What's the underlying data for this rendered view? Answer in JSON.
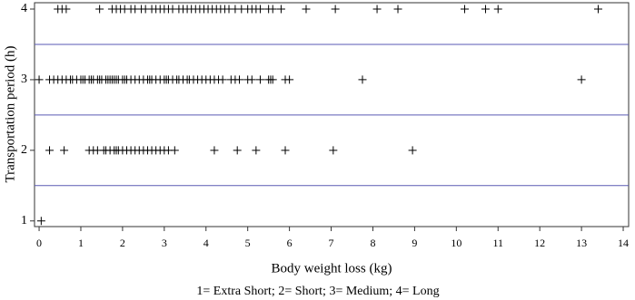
{
  "chart_data": {
    "type": "scatter",
    "xlabel": "Body weight loss (kg)",
    "ylabel": "Transportation period (h)",
    "caption": "1= Extra Short; 2= Short; 3= Medium; 4= Long",
    "xlim": [
      -0.11,
      14.13
    ],
    "ylim": [
      0.92,
      4.09
    ],
    "xticks": [
      0,
      1,
      2,
      3,
      4,
      5,
      6,
      7,
      8,
      9,
      10,
      11,
      12,
      13,
      14
    ],
    "yticks": [
      1,
      2,
      3,
      4
    ],
    "hlines": [
      1.5,
      2.5,
      3.5
    ],
    "hline_color": "#5a5ab4",
    "series": [
      {
        "color": "#000000",
        "x": [
          0.45,
          0.55,
          0.65,
          1.45,
          1.75,
          1.85,
          1.95,
          2.05,
          2.2,
          2.3,
          2.45,
          2.55,
          2.7,
          2.8,
          2.9,
          3.0,
          3.1,
          3.2,
          3.35,
          3.45,
          3.55,
          3.65,
          3.75,
          3.85,
          3.95,
          4.05,
          4.15,
          4.25,
          4.35,
          4.45,
          4.55,
          4.7,
          4.85,
          5.0,
          5.1,
          5.2,
          5.3,
          5.5,
          5.6,
          5.8,
          6.4,
          7.1,
          8.1,
          8.6,
          10.2,
          10.7,
          11.0,
          13.4
        ],
        "values": [
          4,
          4,
          4,
          4,
          4,
          4,
          4,
          4,
          4,
          4,
          4,
          4,
          4,
          4,
          4,
          4,
          4,
          4,
          4,
          4,
          4,
          4,
          4,
          4,
          4,
          4,
          4,
          4,
          4,
          4,
          4,
          4,
          4,
          4,
          4,
          4,
          4,
          4,
          4,
          4,
          4,
          4,
          4,
          4,
          4,
          4,
          4,
          4
        ]
      },
      {
        "color": "#000000",
        "x": [
          0.0,
          0.25,
          0.35,
          0.45,
          0.55,
          0.65,
          0.75,
          0.8,
          0.9,
          1.0,
          1.05,
          1.1,
          1.2,
          1.25,
          1.3,
          1.4,
          1.45,
          1.5,
          1.6,
          1.65,
          1.7,
          1.75,
          1.8,
          1.85,
          1.9,
          2.0,
          2.05,
          2.1,
          2.2,
          2.3,
          2.4,
          2.5,
          2.6,
          2.65,
          2.7,
          2.8,
          2.9,
          3.0,
          3.05,
          3.1,
          3.2,
          3.3,
          3.35,
          3.45,
          3.55,
          3.6,
          3.7,
          3.8,
          3.9,
          4.0,
          4.1,
          4.2,
          4.3,
          4.4,
          4.6,
          4.7,
          4.8,
          5.0,
          5.1,
          5.3,
          5.5,
          5.55,
          5.6,
          5.9,
          6.0,
          7.75,
          13.0
        ],
        "values": [
          3,
          3,
          3,
          3,
          3,
          3,
          3,
          3,
          3,
          3,
          3,
          3,
          3,
          3,
          3,
          3,
          3,
          3,
          3,
          3,
          3,
          3,
          3,
          3,
          3,
          3,
          3,
          3,
          3,
          3,
          3,
          3,
          3,
          3,
          3,
          3,
          3,
          3,
          3,
          3,
          3,
          3,
          3,
          3,
          3,
          3,
          3,
          3,
          3,
          3,
          3,
          3,
          3,
          3,
          3,
          3,
          3,
          3,
          3,
          3,
          3,
          3,
          3,
          3,
          3,
          3,
          3
        ]
      },
      {
        "color": "#000000",
        "x": [
          0.25,
          0.6,
          1.2,
          1.3,
          1.4,
          1.55,
          1.6,
          1.7,
          1.8,
          1.85,
          1.9,
          2.0,
          2.1,
          2.2,
          2.3,
          2.4,
          2.5,
          2.6,
          2.7,
          2.8,
          2.9,
          3.0,
          3.1,
          3.25,
          4.2,
          4.75,
          5.2,
          5.9,
          7.05,
          8.95
        ],
        "values": [
          2,
          2,
          2,
          2,
          2,
          2,
          2,
          2,
          2,
          2,
          2,
          2,
          2,
          2,
          2,
          2,
          2,
          2,
          2,
          2,
          2,
          2,
          2,
          2,
          2,
          2,
          2,
          2,
          2,
          2
        ]
      },
      {
        "color": "#000000",
        "x": [
          0.05
        ],
        "values": [
          1
        ]
      }
    ]
  }
}
